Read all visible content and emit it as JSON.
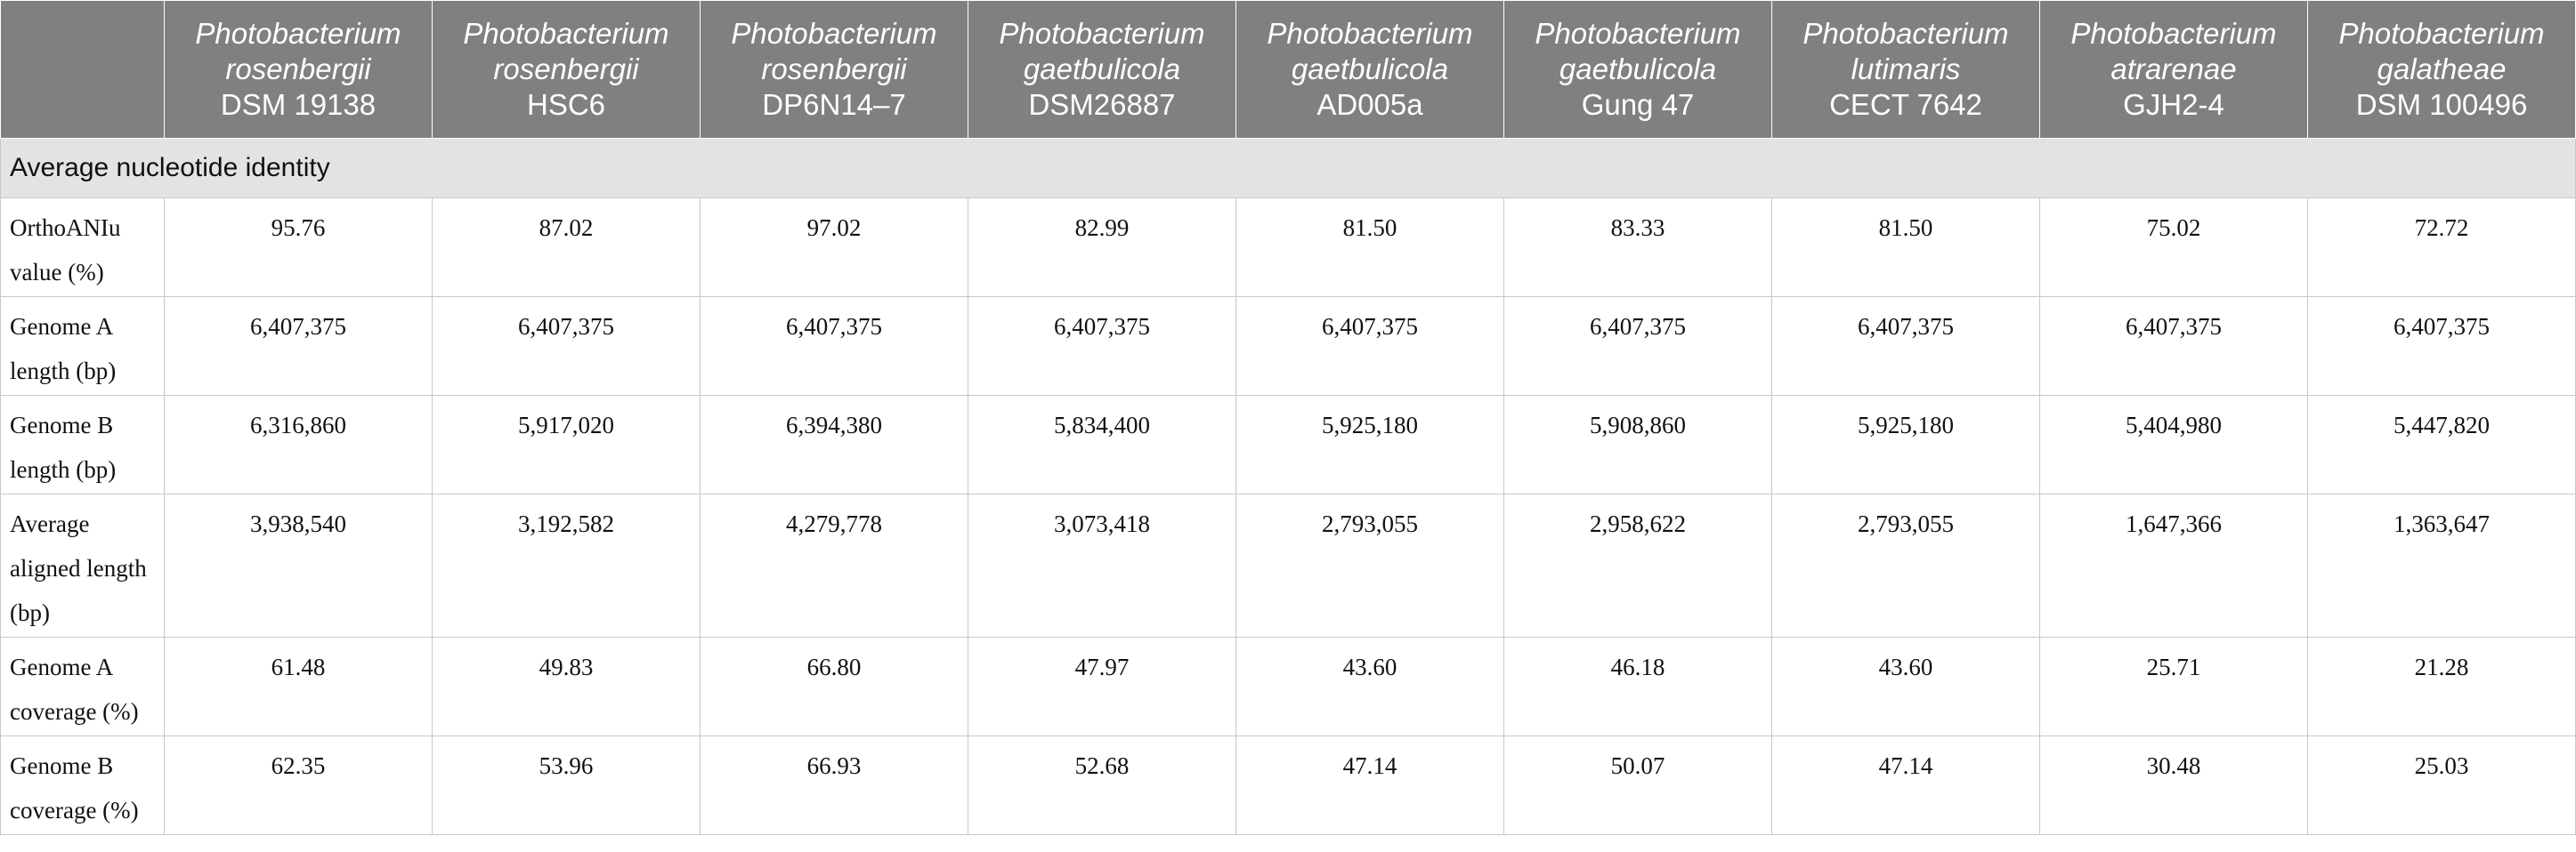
{
  "columns": [
    {
      "genus": "Photobacterium",
      "species": "rosenbergii",
      "strain": "DSM 19138"
    },
    {
      "genus": "Photobacterium",
      "species": "rosenbergii",
      "strain": "HSC6"
    },
    {
      "genus": "Photobacterium",
      "species": "rosenbergii",
      "strain": "DP6N14–7"
    },
    {
      "genus": "Photobacterium",
      "species": "gaetbulicola",
      "strain": "DSM26887"
    },
    {
      "genus": "Photobacterium",
      "species": "gaetbulicola",
      "strain": "AD005a"
    },
    {
      "genus": "Photobacterium",
      "species": "gaetbulicola",
      "strain": "Gung 47"
    },
    {
      "genus": "Photobacterium",
      "species": "lutimaris",
      "strain": "CECT 7642"
    },
    {
      "genus": "Photobacterium",
      "species": "atrarenae",
      "strain": "GJH2-4"
    },
    {
      "genus": "Photobacterium",
      "species": "galatheae",
      "strain": "DSM 100496"
    }
  ],
  "section_title": "Average nucleotide identity",
  "rows": [
    {
      "label": "OrthoANIu value (%)",
      "values": [
        "95.76",
        "87.02",
        "97.02",
        "82.99",
        "81.50",
        "83.33",
        "81.50",
        "75.02",
        "72.72"
      ]
    },
    {
      "label": "Genome A length (bp)",
      "values": [
        "6,407,375",
        "6,407,375",
        "6,407,375",
        "6,407,375",
        "6,407,375",
        "6,407,375",
        "6,407,375",
        "6,407,375",
        "6,407,375"
      ]
    },
    {
      "label": "Genome B length (bp)",
      "values": [
        "6,316,860",
        "5,917,020",
        "6,394,380",
        "5,834,400",
        "5,925,180",
        "5,908,860",
        "5,925,180",
        "5,404,980",
        "5,447,820"
      ]
    },
    {
      "label": "Average aligned length (bp)",
      "values": [
        "3,938,540",
        "3,192,582",
        "4,279,778",
        "3,073,418",
        "2,793,055",
        "2,958,622",
        "2,793,055",
        "1,647,366",
        "1,363,647"
      ]
    },
    {
      "label": "Genome A coverage (%)",
      "values": [
        "61.48",
        "49.83",
        "66.80",
        "47.97",
        "43.60",
        "46.18",
        "43.60",
        "25.71",
        "21.28"
      ]
    },
    {
      "label": "Genome B coverage (%)",
      "values": [
        "62.35",
        "53.96",
        "66.93",
        "52.68",
        "47.14",
        "50.07",
        "47.14",
        "30.48",
        "25.03"
      ]
    }
  ]
}
